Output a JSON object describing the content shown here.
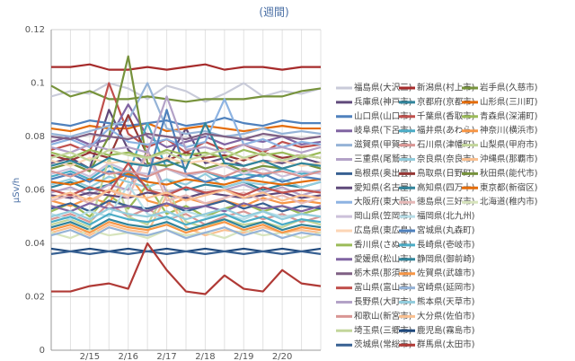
{
  "chart_data": {
    "type": "line",
    "title": "(週間)",
    "y_label": "μSv/h",
    "categories": [
      null,
      null,
      "2/15",
      null,
      "2/16",
      null,
      "2/17",
      null,
      "2/18",
      null,
      "2/19",
      null,
      "2/20",
      null,
      null
    ],
    "ylim": [
      0,
      0.12
    ],
    "yticks": [
      0,
      0.02,
      0.04,
      0.06,
      0.08,
      0.1,
      0.12
    ],
    "grid": true,
    "series": [
      {
        "name": "福島県(大沢三)",
        "color": "#c9cbd9",
        "values": [
          0.095,
          0.097,
          0.096,
          0.1,
          0.098,
          0.094,
          0.099,
          0.097,
          0.093,
          0.096,
          0.1,
          0.095,
          0.097,
          0.096,
          0.098
        ]
      },
      {
        "name": "新潟県(村上市)",
        "color": "#a62b2b",
        "values": [
          0.106,
          0.106,
          0.107,
          0.105,
          0.105,
          0.106,
          0.105,
          0.106,
          0.107,
          0.105,
          0.106,
          0.106,
          0.105,
          0.106,
          0.106
        ]
      },
      {
        "name": "岩手県(久慈市)",
        "color": "#77933c",
        "values": [
          0.099,
          0.095,
          0.097,
          0.094,
          0.094,
          0.095,
          0.094,
          0.093,
          0.094,
          0.094,
          0.094,
          0.095,
          0.095,
          0.097,
          0.098
        ]
      },
      {
        "name": "兵庫県(神戸市)",
        "color": "#604a7b",
        "values": [
          0.07,
          0.072,
          0.068,
          0.09,
          0.075,
          0.069,
          0.071,
          0.083,
          0.07,
          0.072,
          0.069,
          0.071,
          0.07,
          0.072,
          0.07
        ]
      },
      {
        "name": "京都府(京都市)",
        "color": "#31859c",
        "values": [
          0.061,
          0.063,
          0.06,
          0.062,
          0.067,
          0.061,
          0.064,
          0.06,
          0.062,
          0.061,
          0.063,
          0.06,
          0.062,
          0.061,
          0.063
        ]
      },
      {
        "name": "山形県(三川町)",
        "color": "#e46c0a",
        "values": [
          0.083,
          0.082,
          0.084,
          0.083,
          0.083,
          0.085,
          0.082,
          0.083,
          0.084,
          0.083,
          0.082,
          0.083,
          0.084,
          0.083,
          0.083
        ]
      },
      {
        "name": "山口県(山口市)",
        "color": "#4f81bd",
        "values": [
          0.085,
          0.084,
          0.086,
          0.085,
          0.084,
          0.085,
          0.086,
          0.084,
          0.085,
          0.087,
          0.085,
          0.084,
          0.086,
          0.085,
          0.085
        ]
      },
      {
        "name": "千葉県(香取市)",
        "color": "#c0504d",
        "values": [
          0.075,
          0.077,
          0.074,
          0.1,
          0.081,
          0.076,
          0.079,
          0.074,
          0.078,
          0.075,
          0.077,
          0.074,
          0.078,
          0.076,
          0.077
        ]
      },
      {
        "name": "青森県(深浦町)",
        "color": "#9bbb59",
        "values": [
          0.052,
          0.055,
          0.05,
          0.058,
          0.053,
          0.062,
          0.051,
          0.054,
          0.05,
          0.053,
          0.055,
          0.052,
          0.054,
          0.051,
          0.053
        ]
      },
      {
        "name": "岐阜県(下呂市)",
        "color": "#8064a2",
        "values": [
          0.078,
          0.08,
          0.077,
          0.079,
          0.092,
          0.08,
          0.076,
          0.078,
          0.08,
          0.077,
          0.079,
          0.078,
          0.08,
          0.077,
          0.078
        ]
      },
      {
        "name": "福井県(あわら)",
        "color": "#4bacc6",
        "values": [
          0.065,
          0.067,
          0.064,
          0.069,
          0.066,
          0.085,
          0.068,
          0.065,
          0.067,
          0.064,
          0.066,
          0.065,
          0.068,
          0.066,
          0.067
        ]
      },
      {
        "name": "神奈川(横浜市)",
        "color": "#f79646",
        "values": [
          0.056,
          0.054,
          0.057,
          0.055,
          0.066,
          0.056,
          0.054,
          0.057,
          0.055,
          0.056,
          0.054,
          0.057,
          0.055,
          0.056,
          0.055
        ]
      },
      {
        "name": "滋賀県(甲賀市)",
        "color": "#95b3d7",
        "values": [
          0.081,
          0.08,
          0.082,
          0.084,
          0.086,
          0.1,
          0.083,
          0.081,
          0.082,
          0.08,
          0.081,
          0.083,
          0.081,
          0.082,
          0.081
        ]
      },
      {
        "name": "石川県(津幡町)",
        "color": "#d99694",
        "values": [
          0.049,
          0.051,
          0.048,
          0.055,
          0.05,
          0.053,
          0.049,
          0.051,
          0.047,
          0.05,
          0.052,
          0.049,
          0.051,
          0.048,
          0.05
        ]
      },
      {
        "name": "山梨県(甲府市)",
        "color": "#c3d69b",
        "values": [
          0.047,
          0.049,
          0.046,
          0.072,
          0.05,
          0.047,
          0.06,
          0.048,
          0.046,
          0.049,
          0.047,
          0.048,
          0.046,
          0.049,
          0.047
        ]
      },
      {
        "name": "三重県(尾鷲市)",
        "color": "#b3a2c7",
        "values": [
          0.059,
          0.061,
          0.058,
          0.062,
          0.06,
          0.075,
          0.059,
          0.061,
          0.058,
          0.06,
          0.062,
          0.059,
          0.061,
          0.058,
          0.06
        ]
      },
      {
        "name": "奈良県(奈良市)",
        "color": "#93cddd",
        "values": [
          0.062,
          0.064,
          0.061,
          0.065,
          0.063,
          0.061,
          0.064,
          0.062,
          0.066,
          0.061,
          0.063,
          0.062,
          0.064,
          0.061,
          0.063
        ]
      },
      {
        "name": "沖縄県(那覇市)",
        "color": "#fac090",
        "values": [
          0.044,
          0.046,
          0.043,
          0.047,
          0.045,
          0.044,
          0.058,
          0.046,
          0.043,
          0.045,
          0.044,
          0.046,
          0.044,
          0.045,
          0.044
        ]
      },
      {
        "name": "島根県(奥出雲)",
        "color": "#376092",
        "values": [
          0.053,
          0.055,
          0.052,
          0.056,
          0.054,
          0.053,
          0.055,
          0.052,
          0.054,
          0.056,
          0.053,
          0.055,
          0.052,
          0.054,
          0.053
        ]
      },
      {
        "name": "鳥取県(日野町)",
        "color": "#953735",
        "values": [
          0.073,
          0.071,
          0.074,
          0.072,
          0.088,
          0.073,
          0.071,
          0.074,
          0.072,
          0.073,
          0.071,
          0.074,
          0.072,
          0.073,
          0.072
        ]
      },
      {
        "name": "秋田県(能代市)",
        "color": "#76923c",
        "values": [
          0.068,
          0.07,
          0.067,
          0.08,
          0.11,
          0.07,
          0.069,
          0.071,
          0.068,
          0.07,
          0.067,
          0.069,
          0.068,
          0.07,
          0.068
        ]
      },
      {
        "name": "愛知県(名古屋)",
        "color": "#5f497a",
        "values": [
          0.058,
          0.057,
          0.059,
          0.058,
          0.057,
          0.059,
          0.058,
          0.057,
          0.059,
          0.058,
          0.057,
          0.058,
          0.059,
          0.057,
          0.058
        ]
      },
      {
        "name": "高知県(四万十)",
        "color": "#31849b",
        "values": [
          0.046,
          0.048,
          0.045,
          0.049,
          0.047,
          0.046,
          0.048,
          0.045,
          0.047,
          0.049,
          0.046,
          0.048,
          0.045,
          0.047,
          0.046
        ]
      },
      {
        "name": "東京都(新宿区)",
        "color": "#e36c09",
        "values": [
          0.063,
          0.062,
          0.064,
          0.063,
          0.066,
          0.063,
          0.062,
          0.064,
          0.063,
          0.062,
          0.064,
          0.063,
          0.062,
          0.063,
          0.064
        ]
      },
      {
        "name": "大阪府(東大阪)",
        "color": "#8db3e2",
        "values": [
          0.077,
          0.079,
          0.076,
          0.083,
          0.078,
          0.077,
          0.079,
          0.076,
          0.078,
          0.094,
          0.077,
          0.079,
          0.076,
          0.078,
          0.077
        ]
      },
      {
        "name": "徳島県(三好市)",
        "color": "#e6b9b8",
        "values": [
          0.056,
          0.058,
          0.055,
          0.06,
          0.057,
          0.074,
          0.056,
          0.058,
          0.055,
          0.057,
          0.059,
          0.056,
          0.058,
          0.055,
          0.057
        ]
      },
      {
        "name": "北海道(稚内市)",
        "color": "#d7e4bd",
        "values": [
          0.044,
          0.042,
          0.045,
          0.043,
          0.044,
          0.042,
          0.045,
          0.043,
          0.044,
          0.042,
          0.045,
          0.043,
          0.044,
          0.042,
          0.044
        ]
      },
      {
        "name": "岡山県(笠岡市)",
        "color": "#ccc1da",
        "values": [
          0.066,
          0.068,
          0.065,
          0.07,
          0.067,
          0.066,
          0.068,
          0.065,
          0.067,
          0.069,
          0.066,
          0.068,
          0.065,
          0.067,
          0.066
        ]
      },
      {
        "name": "福岡県(北九州)",
        "color": "#b7dee8",
        "values": [
          0.051,
          0.049,
          0.052,
          0.05,
          0.062,
          0.051,
          0.049,
          0.052,
          0.05,
          0.051,
          0.049,
          0.052,
          0.05,
          0.051,
          0.05
        ]
      },
      {
        "name": "広島県(東広島)",
        "color": "#fcd5b5",
        "values": [
          0.071,
          0.069,
          0.072,
          0.07,
          0.071,
          0.069,
          0.072,
          0.07,
          0.071,
          0.069,
          0.072,
          0.07,
          0.071,
          0.069,
          0.07
        ]
      },
      {
        "name": "宮城県(丸森町)",
        "color": "#4f81bd",
        "values": [
          0.064,
          0.066,
          0.063,
          0.067,
          0.065,
          0.064,
          0.09,
          0.066,
          0.063,
          0.065,
          0.064,
          0.066,
          0.063,
          0.065,
          0.064
        ]
      },
      {
        "name": "香川県(さぬき)",
        "color": "#9bbb59",
        "values": [
          0.074,
          0.072,
          0.075,
          0.073,
          0.074,
          0.072,
          0.075,
          0.073,
          0.074,
          0.072,
          0.075,
          0.073,
          0.074,
          0.072,
          0.074
        ]
      },
      {
        "name": "長崎県(壱岐市)",
        "color": "#4bacc6",
        "values": [
          0.048,
          0.05,
          0.047,
          0.051,
          0.049,
          0.048,
          0.05,
          0.047,
          0.049,
          0.051,
          0.048,
          0.05,
          0.047,
          0.049,
          0.048
        ]
      },
      {
        "name": "愛媛県(松山市)",
        "color": "#8064a2",
        "values": [
          0.054,
          0.052,
          0.055,
          0.053,
          0.054,
          0.052,
          0.055,
          0.053,
          0.054,
          0.052,
          0.055,
          0.053,
          0.054,
          0.052,
          0.054
        ]
      },
      {
        "name": "静岡県(御前崎)",
        "color": "#31859c",
        "values": [
          0.069,
          0.071,
          0.068,
          0.072,
          0.07,
          0.069,
          0.071,
          0.068,
          0.085,
          0.07,
          0.069,
          0.071,
          0.068,
          0.07,
          0.069
        ]
      },
      {
        "name": "栃木県(那須塩)",
        "color": "#7f6084",
        "values": [
          0.08,
          0.079,
          0.081,
          0.08,
          0.079,
          0.081,
          0.08,
          0.079,
          0.081,
          0.08,
          0.079,
          0.081,
          0.08,
          0.079,
          0.08
        ]
      },
      {
        "name": "佐賀県(武雄市)",
        "color": "#f79646",
        "values": [
          0.045,
          0.047,
          0.044,
          0.048,
          0.046,
          0.045,
          0.047,
          0.044,
          0.046,
          0.048,
          0.045,
          0.047,
          0.044,
          0.046,
          0.045
        ]
      },
      {
        "name": "富山県(富山市)",
        "color": "#c0504d",
        "values": [
          0.06,
          0.058,
          0.061,
          0.059,
          0.07,
          0.06,
          0.058,
          0.061,
          0.059,
          0.06,
          0.058,
          0.061,
          0.059,
          0.06,
          0.059
        ]
      },
      {
        "name": "宮崎県(延岡市)",
        "color": "#95b3d7",
        "values": [
          0.043,
          0.045,
          0.042,
          0.046,
          0.044,
          0.043,
          0.045,
          0.042,
          0.044,
          0.046,
          0.043,
          0.045,
          0.042,
          0.044,
          0.043
        ]
      },
      {
        "name": "長野県(大町市)",
        "color": "#b3a2c7",
        "values": [
          0.076,
          0.074,
          0.077,
          0.075,
          0.076,
          0.074,
          0.095,
          0.075,
          0.076,
          0.074,
          0.077,
          0.075,
          0.076,
          0.074,
          0.076
        ]
      },
      {
        "name": "熊本県(天草市)",
        "color": "#93cddd",
        "values": [
          0.05,
          0.052,
          0.049,
          0.053,
          0.051,
          0.05,
          0.052,
          0.049,
          0.051,
          0.053,
          0.05,
          0.052,
          0.049,
          0.051,
          0.05
        ]
      },
      {
        "name": "和歌山(新宮市)",
        "color": "#d99694",
        "values": [
          0.067,
          0.065,
          0.068,
          0.066,
          0.067,
          0.065,
          0.068,
          0.066,
          0.067,
          0.065,
          0.068,
          0.066,
          0.067,
          0.065,
          0.067
        ]
      },
      {
        "name": "大分県(佐伯市)",
        "color": "#fac090",
        "values": [
          0.057,
          0.059,
          0.056,
          0.06,
          0.058,
          0.057,
          0.059,
          0.056,
          0.058,
          0.06,
          0.057,
          0.059,
          0.056,
          0.058,
          0.057
        ]
      },
      {
        "name": "埼玉県(三郷市)",
        "color": "#c3d69b",
        "values": [
          0.072,
          0.074,
          0.071,
          0.075,
          0.073,
          0.072,
          0.074,
          0.071,
          0.073,
          0.075,
          0.072,
          0.074,
          0.071,
          0.073,
          0.072
        ]
      },
      {
        "name": "鹿児島(霧島市)",
        "color": "#1f497d",
        "values": [
          0.038,
          0.037,
          0.038,
          0.037,
          0.038,
          0.037,
          0.038,
          0.037,
          0.038,
          0.037,
          0.038,
          0.037,
          0.038,
          0.037,
          0.038
        ]
      },
      {
        "name": "茨城県(常総市)",
        "color": "#376092",
        "values": [
          0.036,
          0.037,
          0.036,
          0.037,
          0.036,
          0.037,
          0.036,
          0.037,
          0.036,
          0.037,
          0.036,
          0.037,
          0.036,
          0.037,
          0.036
        ]
      },
      {
        "name": "群馬県(太田市)",
        "color": "#b03a36",
        "values": [
          0.022,
          0.022,
          0.024,
          0.025,
          0.023,
          0.04,
          0.03,
          0.022,
          0.021,
          0.028,
          0.023,
          0.022,
          0.03,
          0.025,
          0.024
        ]
      }
    ]
  }
}
